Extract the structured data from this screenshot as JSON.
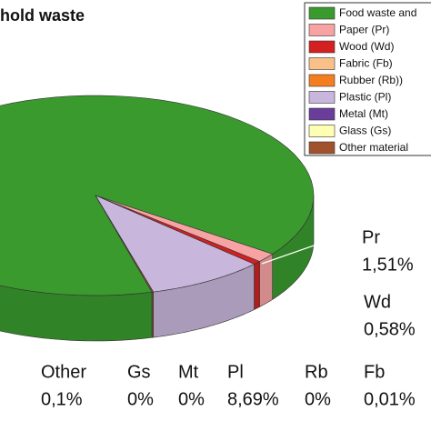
{
  "chart_data": {
    "type": "pie3d",
    "title": "hold waste",
    "categories": [
      "Food waste and",
      "Paper (Pr)",
      "Wood (Wd)",
      "Fabric (Fb)",
      "Rubber (Rb))",
      "Plastic (Pl)",
      "Metal (Mt)",
      "Glass (Gs)",
      "Other material"
    ],
    "short_labels": [
      null,
      "Pr",
      "Wd",
      "Fb",
      "Rb",
      "Pl",
      "Mt",
      "Gs",
      "Other"
    ],
    "values": [
      89.11,
      1.51,
      0.58,
      0.01,
      0,
      8.69,
      0,
      0,
      0.1
    ],
    "value_labels": [
      null,
      "1,51%",
      "0,58%",
      "0,01%",
      "0%",
      "8,69%",
      "0%",
      "0%",
      "0,1%"
    ],
    "colors": [
      "#3a9a2e",
      "#f7a3a3",
      "#d42020",
      "#f9c08a",
      "#f47d20",
      "#c9b6dc",
      "#6a3d9a",
      "#ffffb3",
      "#a0522d"
    ],
    "legend": "top-right"
  }
}
